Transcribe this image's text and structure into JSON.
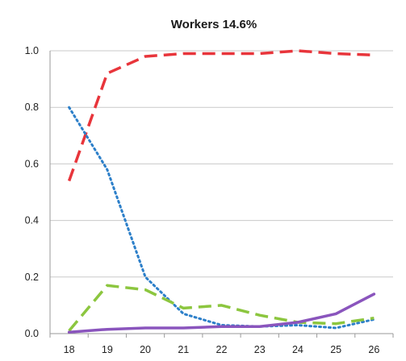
{
  "chart_data": {
    "type": "line",
    "title": "Workers 14.6%",
    "xlabel": "",
    "ylabel": "",
    "x": [
      "18",
      "19",
      "20",
      "21",
      "22",
      "23",
      "24",
      "25",
      "26"
    ],
    "ylim": [
      0,
      1.0
    ],
    "yticks": [
      "0.0",
      "0.2",
      "0.4",
      "0.6",
      "0.8",
      "1.0"
    ],
    "grid": "horizontal",
    "legend": "none",
    "series": [
      {
        "values": [
          0.54,
          0.92,
          0.98,
          0.99,
          0.99,
          0.99,
          1.0,
          0.99,
          0.985
        ],
        "color": "#e8353b",
        "style": "dashed"
      },
      {
        "values": [
          0.8,
          0.58,
          0.2,
          0.07,
          0.03,
          0.025,
          0.03,
          0.02,
          0.05
        ],
        "color": "#2c7fc9",
        "style": "dotted"
      },
      {
        "values": [
          0.01,
          0.17,
          0.155,
          0.09,
          0.1,
          0.065,
          0.04,
          0.035,
          0.055
        ],
        "color": "#8cc63f",
        "style": "dashed"
      },
      {
        "values": [
          0.005,
          0.015,
          0.02,
          0.02,
          0.025,
          0.025,
          0.04,
          0.07,
          0.14
        ],
        "color": "#8a55bd",
        "style": "solid"
      }
    ]
  }
}
